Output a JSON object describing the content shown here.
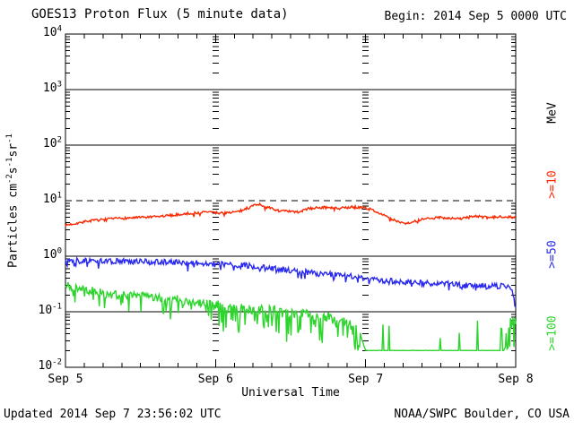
{
  "header": {
    "title": "GOES13 Proton Flux (5 minute data)",
    "begin": "Begin: 2014 Sep 5 0000 UTC"
  },
  "footer": {
    "updated": "Updated 2014 Sep  7 23:56:02 UTC",
    "source": "NOAA/SWPC Boulder, CO USA"
  },
  "colors": {
    "axis": "#000000",
    "background": "#ffffff",
    "red_series": "#fa2800",
    "blue_series": "#2828f0",
    "green_series": "#2cd42c"
  },
  "chart_data": {
    "type": "line",
    "title": "GOES13 Proton Flux (5 minute data)",
    "xlabel": "Universal Time",
    "ylabel_parts": [
      {
        "text": "Particles cm"
      },
      {
        "sup": "-2"
      },
      {
        "text": "s"
      },
      {
        "sup": "-1"
      },
      {
        "text": "sr"
      },
      {
        "sup": "-1"
      }
    ],
    "right_axis_label": "MeV",
    "x_tick_labels": [
      "Sep 5",
      "Sep 6",
      "Sep 7",
      "Sep 8"
    ],
    "x_range_days": [
      0,
      3
    ],
    "x_minor_tick_hours": 3,
    "y_scale": "log",
    "ylim": [
      0.01,
      10000
    ],
    "y_tick_base": "10",
    "y_tick_exponents": [
      4,
      3,
      2,
      1,
      0,
      -1,
      -2
    ],
    "solid_hlines": [
      1000,
      100,
      1,
      0.1
    ],
    "dashed_hlines": [
      10
    ],
    "day_gridlines_at": [
      1,
      2
    ],
    "legend_position": "right",
    "grid": true,
    "series": [
      {
        "label": ">=10",
        "name": "protons >=10 MeV",
        "color": "#fa2800",
        "seed": 7,
        "floor": null,
        "waypoints": [
          [
            0,
            3.6
          ],
          [
            0.15,
            4.3
          ],
          [
            0.35,
            4.8
          ],
          [
            0.6,
            5.1
          ],
          [
            0.8,
            5.8
          ],
          [
            0.95,
            6.3
          ],
          [
            1.02,
            6.0
          ],
          [
            1.15,
            6.3
          ],
          [
            1.28,
            8.8
          ],
          [
            1.33,
            7.8
          ],
          [
            1.42,
            6.6
          ],
          [
            1.55,
            6.2
          ],
          [
            1.62,
            7.2
          ],
          [
            1.72,
            7.6
          ],
          [
            1.82,
            7.2
          ],
          [
            1.92,
            7.7
          ],
          [
            2.0,
            7.4
          ],
          [
            2.08,
            6.3
          ],
          [
            2.17,
            4.6
          ],
          [
            2.27,
            3.9
          ],
          [
            2.38,
            4.6
          ],
          [
            2.5,
            5.0
          ],
          [
            2.62,
            4.7
          ],
          [
            2.73,
            5.3
          ],
          [
            2.82,
            4.9
          ],
          [
            2.92,
            5.2
          ],
          [
            3.0,
            5.0
          ]
        ],
        "regimes": [
          {
            "t0": 0,
            "t1": 3,
            "noise": 0.022,
            "spike_prob": 0.06,
            "spike": -0.05
          }
        ]
      },
      {
        "label": ">=50",
        "name": "protons >=50 MeV",
        "color": "#2828f0",
        "seed": 13,
        "floor": null,
        "waypoints": [
          [
            0,
            0.86
          ],
          [
            0.25,
            0.82
          ],
          [
            0.5,
            0.8
          ],
          [
            0.75,
            0.78
          ],
          [
            1.0,
            0.73
          ],
          [
            1.2,
            0.68
          ],
          [
            1.35,
            0.62
          ],
          [
            1.5,
            0.55
          ],
          [
            1.65,
            0.5
          ],
          [
            1.8,
            0.46
          ],
          [
            1.95,
            0.42
          ],
          [
            2.1,
            0.37
          ],
          [
            2.3,
            0.34
          ],
          [
            2.5,
            0.32
          ],
          [
            2.7,
            0.3
          ],
          [
            2.9,
            0.29
          ],
          [
            2.97,
            0.27
          ],
          [
            3.0,
            0.13
          ]
        ],
        "regimes": [
          {
            "t0": 0,
            "t1": 3,
            "noise": 0.05,
            "spike_prob": 0.12,
            "spike": -0.12
          }
        ]
      },
      {
        "label": ">=100",
        "name": "protons >=100 MeV",
        "color": "#2cd42c",
        "seed": 21,
        "floor": 0.02,
        "waypoints": [
          [
            0,
            0.3
          ],
          [
            0.15,
            0.24
          ],
          [
            0.3,
            0.21
          ],
          [
            0.5,
            0.19
          ],
          [
            0.7,
            0.17
          ],
          [
            0.85,
            0.15
          ],
          [
            1.0,
            0.13
          ],
          [
            1.15,
            0.115
          ],
          [
            1.3,
            0.105
          ],
          [
            1.45,
            0.1
          ],
          [
            1.6,
            0.09
          ],
          [
            1.75,
            0.08
          ],
          [
            1.85,
            0.07
          ],
          [
            1.93,
            0.055
          ],
          [
            1.97,
            0.035
          ],
          [
            2.0,
            0.02
          ],
          [
            2.9,
            0.02
          ],
          [
            3.0,
            0.025
          ]
        ],
        "regimes": [
          {
            "t0": 0,
            "t1": 1.0,
            "noise": 0.085,
            "spike_prob": 0.12,
            "spike": -0.35
          },
          {
            "t0": 1.0,
            "t1": 1.97,
            "noise": 0.1,
            "spike_prob": 0.25,
            "spike": -0.5
          },
          {
            "t0": 1.97,
            "t1": 2.9,
            "noise": 0.004,
            "spike_prob": 0.05,
            "spike": 0.55
          },
          {
            "t0": 2.9,
            "t1": 3.0,
            "noise": 0.03,
            "spike_prob": 0.45,
            "spike": 0.6
          }
        ]
      }
    ]
  }
}
